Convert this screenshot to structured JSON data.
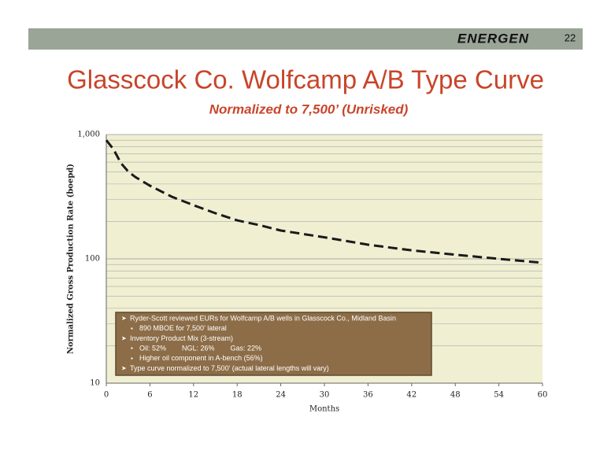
{
  "header": {
    "logo": "ENERGEN",
    "page_number": "22"
  },
  "chart_data": {
    "type": "line",
    "title": "Glasscock Co. Wolfcamp A/B Type Curve",
    "subtitle": "Normalized to 7,500’ (Unrisked)",
    "x_label": "Months",
    "y_label": "Normalized Gross Production Rate (boepd)",
    "x": [
      0,
      1,
      2,
      3,
      4,
      6,
      9,
      12,
      15,
      18,
      21,
      24,
      30,
      36,
      42,
      48,
      54,
      60
    ],
    "series": [
      {
        "color": "#1a1a1a",
        "values": [
          900,
          760,
          590,
          505,
          455,
          388,
          316,
          270,
          233,
          204,
          187,
          169,
          149,
          130,
          117,
          108,
          100,
          93
        ]
      }
    ],
    "xlim": [
      0,
      60
    ],
    "xticks": [
      0,
      6,
      12,
      18,
      24,
      30,
      36,
      42,
      48,
      54,
      60
    ],
    "ylim": [
      10,
      1000
    ],
    "yticks": [
      10,
      100,
      {
        "value": 1000,
        "label": "1,000"
      }
    ],
    "log_y": true,
    "grid": true,
    "annotations": [
      {
        "level": 1,
        "text": "Ryder-Scott reviewed EURs for Wolfcamp A/B wells in Glasscock Co., Midland Basin"
      },
      {
        "level": 2,
        "text": "890 MBOE for 7,500’ lateral"
      },
      {
        "level": 1,
        "text": "Inventory Product Mix (3-stream)"
      },
      {
        "level": 2,
        "text": "Oil: 52%        NGL: 26%        Gas: 22%"
      },
      {
        "level": 2,
        "text": "Higher oil component in A-bench (56%)"
      },
      {
        "level": 1,
        "text": "Type curve normalized to 7,500’ (actual lateral lengths will vary)"
      }
    ]
  }
}
